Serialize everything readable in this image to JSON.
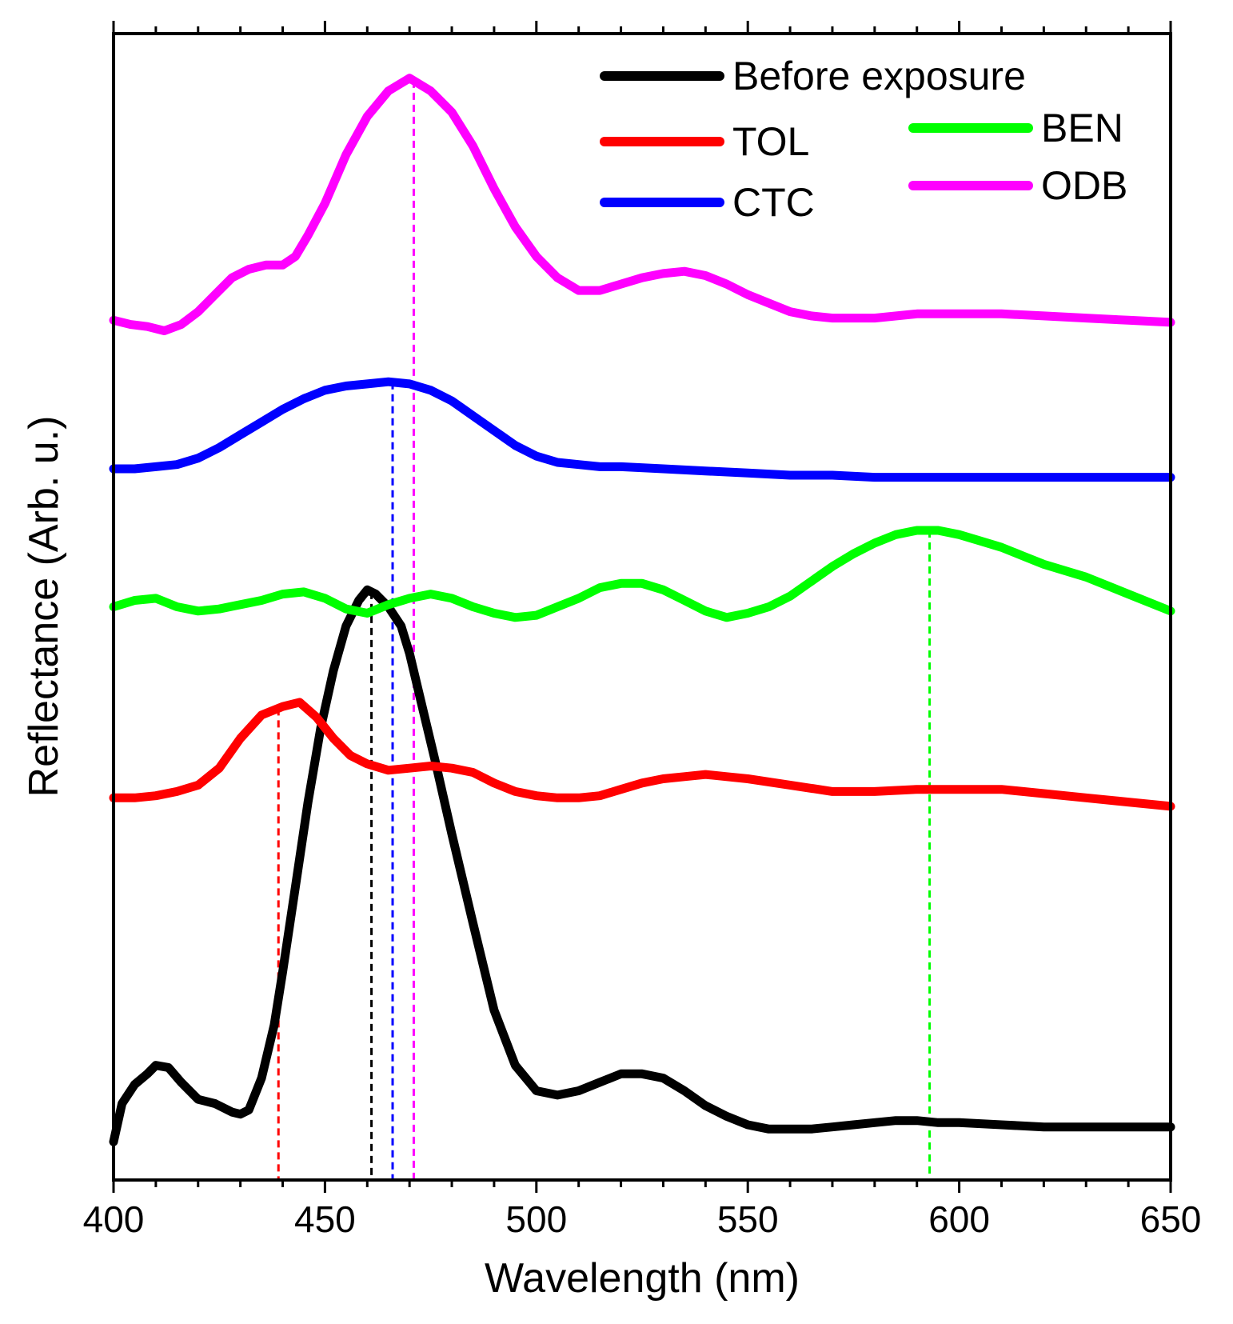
{
  "chart_data": {
    "type": "line",
    "title": "",
    "xlabel": "Wavelength (nm)",
    "ylabel": "Reflectance (Arb. u.)",
    "xlim": [
      400,
      650
    ],
    "ylim": [
      0,
      5.4
    ],
    "xticks": [
      400,
      450,
      500,
      550,
      600,
      650
    ],
    "xtick_labels": [
      "400",
      "450",
      "500",
      "550",
      "600",
      "650"
    ],
    "grid": false,
    "legend_position": "top-right",
    "series": [
      {
        "name": "Before exposure",
        "color": "#000000",
        "offset": 0.18,
        "x": [
          400,
          402,
          405,
          408,
          410,
          413,
          416,
          420,
          424,
          428,
          430,
          432,
          435,
          438,
          440,
          443,
          446,
          449,
          452,
          455,
          458,
          460,
          462,
          465,
          468,
          470,
          473,
          476,
          480,
          485,
          490,
          495,
          500,
          505,
          510,
          515,
          520,
          525,
          530,
          535,
          540,
          545,
          550,
          555,
          560,
          565,
          570,
          575,
          580,
          585,
          590,
          595,
          600,
          610,
          620,
          630,
          640,
          650
        ],
        "values": [
          0.0,
          0.18,
          0.27,
          0.32,
          0.36,
          0.35,
          0.28,
          0.2,
          0.18,
          0.14,
          0.13,
          0.15,
          0.3,
          0.55,
          0.8,
          1.2,
          1.6,
          1.95,
          2.22,
          2.43,
          2.55,
          2.6,
          2.58,
          2.52,
          2.43,
          2.3,
          2.05,
          1.8,
          1.45,
          1.03,
          0.62,
          0.36,
          0.24,
          0.22,
          0.24,
          0.28,
          0.32,
          0.32,
          0.3,
          0.24,
          0.17,
          0.12,
          0.08,
          0.06,
          0.06,
          0.06,
          0.07,
          0.08,
          0.09,
          0.1,
          0.1,
          0.09,
          0.09,
          0.08,
          0.07,
          0.07,
          0.07,
          0.07
        ]
      },
      {
        "name": "TOL",
        "color": "#ff0000",
        "offset": 1.8,
        "x": [
          400,
          405,
          410,
          415,
          420,
          425,
          430,
          435,
          440,
          444,
          448,
          452,
          456,
          460,
          465,
          470,
          475,
          480,
          485,
          490,
          495,
          500,
          505,
          510,
          515,
          520,
          525,
          530,
          535,
          540,
          545,
          550,
          560,
          570,
          580,
          590,
          600,
          610,
          620,
          630,
          640,
          650
        ],
        "values": [
          0.0,
          0.0,
          0.01,
          0.03,
          0.06,
          0.14,
          0.28,
          0.39,
          0.43,
          0.45,
          0.38,
          0.28,
          0.2,
          0.16,
          0.13,
          0.14,
          0.15,
          0.14,
          0.12,
          0.07,
          0.03,
          0.01,
          0.0,
          0.0,
          0.01,
          0.04,
          0.07,
          0.09,
          0.1,
          0.11,
          0.1,
          0.09,
          0.06,
          0.03,
          0.03,
          0.04,
          0.04,
          0.04,
          0.02,
          0.0,
          -0.02,
          -0.04
        ]
      },
      {
        "name": "BEN",
        "color": "#00ff00",
        "offset": 2.7,
        "x": [
          400,
          405,
          410,
          415,
          420,
          425,
          430,
          435,
          440,
          445,
          450,
          455,
          460,
          465,
          470,
          475,
          480,
          485,
          490,
          495,
          500,
          505,
          510,
          515,
          520,
          525,
          530,
          535,
          540,
          545,
          550,
          555,
          560,
          565,
          570,
          575,
          580,
          585,
          590,
          595,
          600,
          605,
          610,
          615,
          620,
          630,
          640,
          650
        ],
        "values": [
          0.0,
          0.03,
          0.04,
          0.0,
          -0.02,
          -0.01,
          0.01,
          0.03,
          0.06,
          0.07,
          0.04,
          -0.01,
          -0.03,
          0.01,
          0.04,
          0.06,
          0.04,
          0.0,
          -0.03,
          -0.05,
          -0.04,
          0.0,
          0.04,
          0.09,
          0.11,
          0.11,
          0.08,
          0.03,
          -0.02,
          -0.05,
          -0.03,
          0.0,
          0.05,
          0.12,
          0.19,
          0.25,
          0.3,
          0.34,
          0.36,
          0.36,
          0.34,
          0.31,
          0.28,
          0.24,
          0.2,
          0.14,
          0.06,
          -0.02
        ]
      },
      {
        "name": "CTC",
        "color": "#0000ff",
        "offset": 3.35,
        "x": [
          400,
          405,
          410,
          415,
          420,
          425,
          430,
          435,
          440,
          445,
          450,
          455,
          460,
          465,
          470,
          475,
          480,
          485,
          490,
          495,
          500,
          505,
          510,
          515,
          520,
          530,
          540,
          550,
          560,
          570,
          580,
          590,
          600,
          610,
          620,
          630,
          640,
          650
        ],
        "values": [
          0.0,
          0.0,
          0.01,
          0.02,
          0.05,
          0.1,
          0.16,
          0.22,
          0.28,
          0.33,
          0.37,
          0.39,
          0.4,
          0.41,
          0.4,
          0.37,
          0.32,
          0.25,
          0.18,
          0.11,
          0.06,
          0.03,
          0.02,
          0.01,
          0.01,
          0.0,
          -0.01,
          -0.02,
          -0.03,
          -0.03,
          -0.04,
          -0.04,
          -0.04,
          -0.04,
          -0.04,
          -0.04,
          -0.04,
          -0.04
        ]
      },
      {
        "name": "ODB",
        "color": "#ff00ff",
        "offset": 4.05,
        "x": [
          400,
          404,
          408,
          412,
          416,
          420,
          424,
          428,
          432,
          436,
          440,
          443,
          446,
          450,
          455,
          460,
          465,
          470,
          475,
          480,
          485,
          490,
          495,
          500,
          505,
          510,
          515,
          520,
          525,
          530,
          535,
          540,
          545,
          550,
          555,
          560,
          565,
          570,
          575,
          580,
          590,
          600,
          610,
          620,
          630,
          640,
          650
        ],
        "values": [
          0.0,
          -0.02,
          -0.03,
          -0.05,
          -0.02,
          0.04,
          0.12,
          0.2,
          0.24,
          0.26,
          0.26,
          0.3,
          0.4,
          0.55,
          0.78,
          0.96,
          1.08,
          1.14,
          1.08,
          0.98,
          0.82,
          0.62,
          0.44,
          0.3,
          0.2,
          0.14,
          0.14,
          0.17,
          0.2,
          0.22,
          0.23,
          0.21,
          0.17,
          0.12,
          0.08,
          0.04,
          0.02,
          0.01,
          0.01,
          0.01,
          0.03,
          0.03,
          0.03,
          0.02,
          0.01,
          0.0,
          -0.01
        ]
      }
    ],
    "reference_lines": [
      {
        "series": "TOL",
        "x": 439,
        "color": "#ff0000"
      },
      {
        "series": "Before exposure",
        "x": 461,
        "color": "#000000"
      },
      {
        "series": "CTC",
        "x": 466,
        "color": "#0000ff"
      },
      {
        "series": "ODB",
        "x": 471,
        "color": "#ff00ff"
      },
      {
        "series": "BEN",
        "x": 593,
        "color": "#00ff00"
      }
    ]
  }
}
